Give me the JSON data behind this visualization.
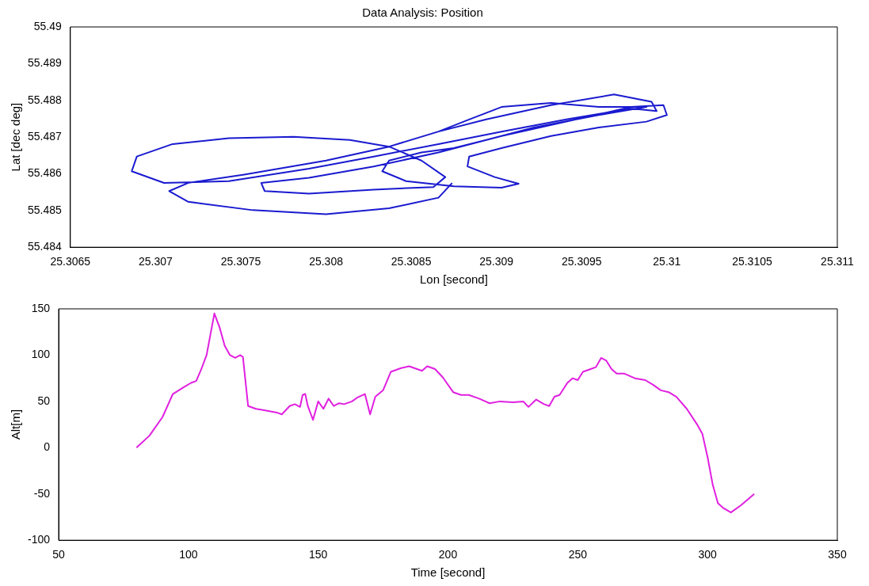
{
  "chart_data": [
    {
      "type": "line",
      "title": "Data Analysis: Position",
      "xlabel": "Lon [second]",
      "ylabel": "Lat [dec deg]",
      "color": "#1a1ad0",
      "x": [
        25.30874,
        25.30866,
        25.30837,
        25.308,
        25.30757,
        25.30719,
        25.30708,
        25.30719,
        25.30752,
        25.308,
        25.30837,
        25.30866,
        25.30894,
        25.30932,
        25.30969,
        25.30991,
        25.30994,
        25.30979,
        25.30941,
        25.30903,
        25.30866,
        25.30828,
        25.3079,
        25.30743,
        25.30705,
        25.30686,
        25.30689,
        25.3071,
        25.30743,
        25.30781,
        25.30814,
        25.30837,
        25.30856,
        25.3087,
        25.30863,
        25.30828,
        25.3079,
        25.30764,
        25.30762,
        25.3079,
        25.30828,
        25.30866,
        25.30903,
        25.30941,
        25.30979,
        25.30998,
        25.31,
        25.30988,
        25.3096,
        25.30932,
        25.30903,
        25.30884,
        25.30883,
        25.30899,
        25.30913,
        25.30903,
        25.30875,
        25.30847,
        25.30833,
        25.30837,
        25.30856,
        25.30875,
        25.30894,
        25.30922,
        25.3096,
        25.30988,
        25.3096,
        25.30932,
        25.30903,
        25.30884,
        25.30866
      ],
      "values": [
        55.48575,
        55.48535,
        55.48506,
        55.4849,
        55.48501,
        55.48524,
        55.48553,
        55.48575,
        55.48598,
        55.48636,
        55.48674,
        55.48715,
        55.48748,
        55.48787,
        55.48816,
        55.48796,
        55.48771,
        55.48778,
        55.48748,
        55.48715,
        55.48681,
        55.48647,
        55.48614,
        55.4858,
        55.48575,
        55.48607,
        55.48647,
        55.48681,
        55.48697,
        55.48701,
        55.48692,
        55.48674,
        55.48636,
        55.48591,
        55.48564,
        55.48557,
        55.48546,
        55.48553,
        55.48575,
        55.48589,
        55.4862,
        55.48658,
        55.48703,
        55.48742,
        55.48782,
        55.48787,
        55.4876,
        55.48742,
        55.48726,
        55.48703,
        55.4867,
        55.48647,
        55.4862,
        55.48591,
        55.48573,
        55.48562,
        55.48566,
        55.4858,
        55.48607,
        55.48636,
        55.48658,
        55.4867,
        55.48692,
        55.48726,
        55.4876,
        55.48782,
        55.48782,
        55.48793,
        55.48782,
        55.48748,
        55.48715
      ],
      "xlim": [
        25.3065,
        25.311
      ],
      "xticks": [
        25.3065,
        25.307,
        25.3075,
        25.308,
        25.3085,
        25.309,
        25.3095,
        25.31,
        25.3105,
        25.311
      ],
      "ylim": [
        55.484,
        55.49
      ],
      "yticks": [
        55.484,
        55.485,
        55.486,
        55.487,
        55.488,
        55.489,
        55.49
      ]
    },
    {
      "type": "line",
      "xlabel": "Time [second]",
      "ylabel": "Alt[m]",
      "color": "#e020e0",
      "x": [
        80,
        85,
        90,
        94,
        98,
        101,
        103,
        105,
        107,
        109,
        110,
        112,
        114,
        116,
        118,
        120,
        121,
        123,
        126,
        130,
        134,
        136,
        139,
        141,
        143,
        144,
        145,
        146,
        148,
        150,
        152,
        154,
        156,
        158,
        160,
        163,
        165,
        168,
        170,
        172,
        175,
        178,
        182,
        185,
        190,
        192,
        195,
        198,
        202,
        205,
        208,
        212,
        216,
        220,
        225,
        229,
        231,
        234,
        237,
        239,
        241,
        243,
        246,
        248,
        250,
        252,
        255,
        257,
        259,
        261,
        263,
        265,
        268,
        272,
        276,
        279,
        282,
        285,
        288,
        292,
        296,
        298,
        300,
        302,
        304,
        306,
        309,
        313,
        318
      ],
      "values": [
        0,
        13,
        33,
        58,
        65,
        70,
        72,
        85,
        100,
        130,
        145,
        130,
        110,
        100,
        97,
        100,
        98,
        45,
        42,
        40,
        38,
        36,
        45,
        47,
        44,
        57,
        58,
        45,
        30,
        50,
        42,
        53,
        45,
        48,
        47,
        50,
        54,
        58,
        36,
        55,
        62,
        82,
        86,
        88,
        83,
        88,
        85,
        76,
        60,
        57,
        57,
        53,
        48,
        50,
        49,
        50,
        44,
        52,
        47,
        45,
        55,
        57,
        70,
        75,
        73,
        82,
        85,
        87,
        97,
        94,
        85,
        80,
        80,
        75,
        73,
        68,
        62,
        60,
        55,
        42,
        25,
        15,
        -10,
        -40,
        -60,
        -65,
        -70,
        -62,
        -50
      ],
      "xlim": [
        50,
        350
      ],
      "xticks": [
        50,
        100,
        150,
        200,
        250,
        300,
        350
      ],
      "ylim": [
        -100,
        150
      ],
      "yticks": [
        -100,
        -50,
        0,
        50,
        100,
        150
      ]
    }
  ]
}
